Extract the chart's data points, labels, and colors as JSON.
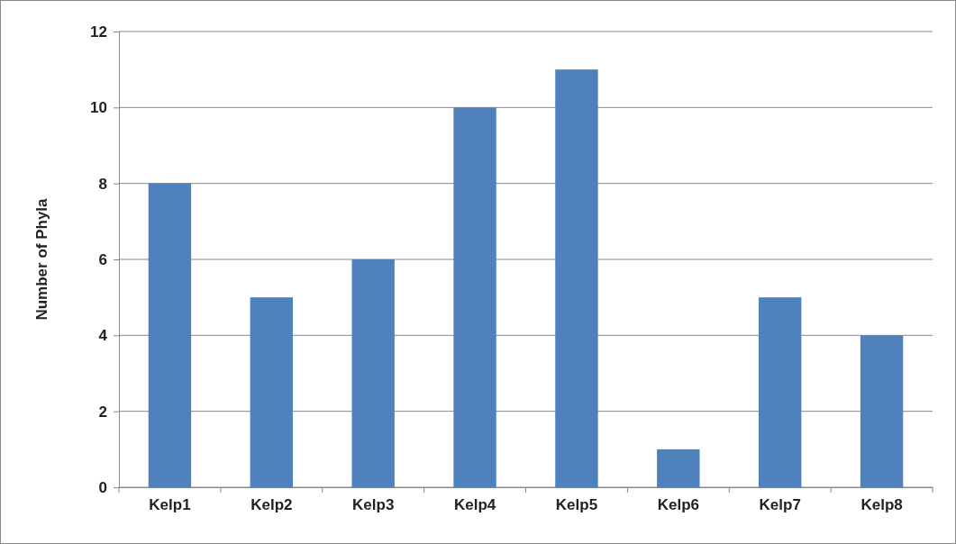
{
  "chart_data": {
    "type": "bar",
    "ylabel": "Number of Phyla",
    "categories": [
      "Kelp1",
      "Kelp2",
      "Kelp3",
      "Kelp4",
      "Kelp5",
      "Kelp6",
      "Kelp7",
      "Kelp8"
    ],
    "values": [
      8,
      5,
      6,
      10,
      11,
      1,
      5,
      4
    ],
    "color": "#4f81bd",
    "ylim": [
      0,
      12
    ],
    "yticks": [
      0,
      2,
      4,
      6,
      8,
      10,
      12
    ],
    "grid": "y"
  }
}
